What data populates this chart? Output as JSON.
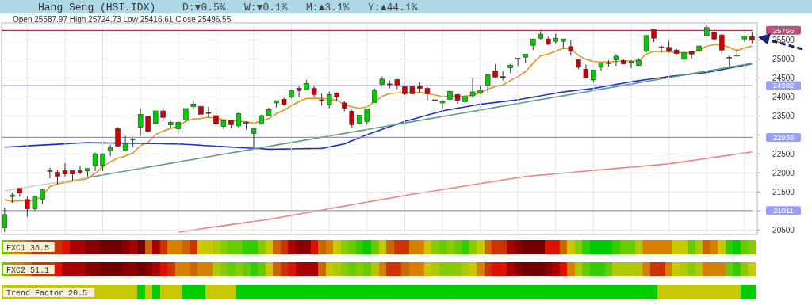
{
  "chart_data": [
    {
      "type": "candlestick",
      "title": "Hang Seng (HSI.IDX)",
      "subtitle": "D:▼0.5%   W:▼0.1%   M:▲3.1%   Y:▲44.1%",
      "annotations": [
        "Open 25587.97 High 25724.73 Low 25416.61 Close 25496.55"
      ],
      "categories": [
        null,
        null,
        null,
        null,
        null,
        null,
        null,
        null,
        null,
        null,
        null,
        null,
        null,
        null,
        null,
        null,
        null,
        null,
        null,
        null,
        null,
        null,
        null,
        null,
        null,
        null,
        null,
        null,
        null,
        null,
        null,
        null,
        null,
        null,
        null,
        null,
        null,
        null,
        null,
        null,
        null,
        null,
        null,
        null,
        null,
        null,
        null,
        null,
        null,
        null,
        null,
        null,
        null,
        null,
        null,
        null,
        null,
        null,
        null,
        null,
        null,
        null,
        null,
        null,
        null,
        null,
        null,
        null,
        null,
        null,
        null,
        null,
        null,
        null,
        null,
        null,
        null,
        null,
        null,
        null,
        null,
        null,
        null,
        null,
        null,
        null,
        null,
        null,
        null,
        null,
        null,
        null,
        null,
        null,
        null,
        null,
        null,
        null,
        null,
        null
      ],
      "ohlc": [
        [
          20556,
          21092,
          20444,
          20904
        ],
        [
          21378,
          21489,
          21210,
          21420
        ],
        [
          21594,
          21594,
          21371,
          21475
        ],
        [
          21301,
          21371,
          20848,
          21057
        ],
        [
          21057,
          21406,
          21009,
          21385
        ],
        [
          21301,
          21587,
          21183,
          21559
        ],
        [
          22050,
          22137,
          21858,
          22060
        ],
        [
          22019,
          22081,
          21705,
          21914
        ],
        [
          22060,
          22255,
          21907,
          21970
        ],
        [
          22060,
          22060,
          21803,
          21970
        ],
        [
          22060,
          22193,
          21963,
          22012
        ],
        [
          22053,
          22116,
          21907,
          22116
        ],
        [
          22193,
          22534,
          22053,
          22506
        ],
        [
          22193,
          22506,
          22053,
          22506
        ],
        [
          22576,
          22743,
          22437,
          22659
        ],
        [
          23168,
          23203,
          22694,
          22708
        ],
        [
          22604,
          22973,
          22576,
          22764
        ],
        [
          22875,
          22924,
          22680,
          22890
        ],
        [
          23203,
          23690,
          22973,
          23544
        ],
        [
          23488,
          23488,
          23077,
          23098
        ],
        [
          23307,
          23634,
          23286,
          23634
        ],
        [
          23634,
          23718,
          23356,
          23461
        ],
        [
          23266,
          23370,
          23182,
          23335
        ],
        [
          23161,
          23370,
          23043,
          23335
        ],
        [
          23405,
          23697,
          23356,
          23697
        ],
        [
          23746,
          23913,
          23690,
          23816
        ],
        [
          23753,
          23774,
          23461,
          23544
        ],
        [
          23590,
          23739,
          23461,
          23579
        ],
        [
          23509,
          23565,
          23217,
          23286
        ],
        [
          23231,
          23377,
          23161,
          23377
        ],
        [
          23391,
          23391,
          23182,
          23272
        ],
        [
          23238,
          23600,
          23182,
          23565
        ],
        [
          23330,
          23356,
          23147,
          23321
        ],
        [
          23043,
          23161,
          22639,
          23161
        ],
        [
          23286,
          23530,
          23272,
          23509
        ],
        [
          23509,
          23718,
          23495,
          23670
        ],
        [
          23844,
          23906,
          23725,
          23906
        ],
        [
          23941,
          23983,
          23774,
          23802
        ],
        [
          23997,
          24192,
          23969,
          24178
        ],
        [
          24227,
          24282,
          23997,
          24171
        ],
        [
          24192,
          24450,
          24192,
          24359
        ],
        [
          24227,
          24296,
          23997,
          24067
        ],
        [
          23927,
          24088,
          23774,
          23920
        ],
        [
          23795,
          24143,
          23704,
          24067
        ],
        [
          24109,
          24122,
          23878,
          23997
        ],
        [
          23844,
          23892,
          23621,
          23704
        ],
        [
          23621,
          23669,
          23182,
          23272
        ],
        [
          23307,
          23523,
          23286,
          23523
        ],
        [
          23356,
          23690,
          23272,
          23690
        ],
        [
          23858,
          24227,
          23858,
          24178
        ],
        [
          24331,
          24540,
          24317,
          24471
        ],
        [
          24345,
          24436,
          24227,
          24340
        ],
        [
          24457,
          24485,
          24206,
          24317
        ],
        [
          24275,
          24275,
          24053,
          24088
        ],
        [
          24275,
          24275,
          24067,
          24088
        ],
        [
          24296,
          24380,
          24122,
          24227
        ],
        [
          24227,
          24262,
          23913,
          24088
        ],
        [
          23927,
          24018,
          23683,
          23920
        ],
        [
          23844,
          23927,
          23704,
          23892
        ],
        [
          23941,
          24171,
          23892,
          24150
        ],
        [
          24067,
          24088,
          23823,
          23913
        ],
        [
          23878,
          24088,
          23823,
          24011
        ],
        [
          24032,
          24499,
          23983,
          24136
        ],
        [
          24109,
          24289,
          24081,
          24192
        ],
        [
          24310,
          24589,
          24122,
          24589
        ],
        [
          24692,
          24868,
          24506,
          24525
        ],
        [
          24540,
          24680,
          24436,
          24506
        ],
        [
          24770,
          24868,
          24624,
          24840
        ],
        [
          25014,
          25020,
          24819,
          25020
        ],
        [
          25049,
          25132,
          24902,
          25132
        ],
        [
          25362,
          25529,
          25237,
          25529
        ],
        [
          25550,
          25738,
          25515,
          25655
        ],
        [
          25529,
          25585,
          25362,
          25390
        ],
        [
          25467,
          25669,
          25411,
          25550
        ],
        [
          25467,
          25529,
          25272,
          25529
        ],
        [
          25327,
          25502,
          25091,
          25202
        ],
        [
          24979,
          24993,
          24735,
          24784
        ],
        [
          24735,
          24854,
          24485,
          24505
        ],
        [
          24450,
          24714,
          24380,
          24714
        ],
        [
          24784,
          24902,
          24693,
          24902
        ],
        [
          24875,
          24972,
          24805,
          24902
        ],
        [
          24979,
          25132,
          24819,
          25077
        ],
        [
          24958,
          24993,
          24854,
          24875
        ],
        [
          24920,
          24972,
          24763,
          24930
        ],
        [
          24833,
          25014,
          24819,
          24972
        ],
        [
          25202,
          25620,
          25181,
          25620
        ],
        [
          25773,
          25773,
          25446,
          25550
        ],
        [
          25320,
          25362,
          25167,
          25300
        ],
        [
          25307,
          25481,
          25167,
          25216
        ],
        [
          25237,
          25272,
          25098,
          25146
        ],
        [
          24993,
          25216,
          24902,
          25167
        ],
        [
          25202,
          25216,
          25014,
          25132
        ],
        [
          25223,
          25362,
          25167,
          25341
        ],
        [
          25620,
          25919,
          25599,
          25829
        ],
        [
          25704,
          25808,
          25502,
          25529
        ],
        [
          25634,
          25655,
          25132,
          25237
        ],
        [
          25040,
          25084,
          24784,
          25045
        ],
        [
          25090,
          25251,
          25063,
          25098
        ],
        [
          25529,
          25606,
          25460,
          25606
        ],
        [
          25587.97,
          25724.73,
          25416.61,
          25496.55
        ]
      ],
      "ylim": [
        20380,
        25950
      ],
      "yticks": [
        20500,
        {
          "value": 21000,
          "label": null
        },
        21500,
        22000,
        22500,
        {
          "value": 23000,
          "label": null
        },
        23500,
        24000,
        24500,
        25000,
        25500
      ],
      "tick_labels": "y",
      "grid": true,
      "ref_lines": [
        {
          "axis": "y",
          "value": 25756,
          "label": "25756",
          "color": "#b03060"
        },
        {
          "axis": "y",
          "value": 24302,
          "label": "24302",
          "color": "#8a90f0"
        },
        {
          "axis": "y",
          "value": 22938,
          "label": "22938",
          "color": "#8a90f0"
        },
        {
          "axis": "y",
          "value": 21011,
          "label": "21011",
          "color": "#8a90f0"
        }
      ]
    },
    {
      "type": "line",
      "categories": [
        null,
        null,
        null,
        null,
        null,
        null,
        null,
        null,
        null,
        null,
        null,
        null,
        null,
        null,
        null,
        null,
        null,
        null,
        null,
        null,
        null,
        null,
        null,
        null,
        null,
        null,
        null,
        null,
        null,
        null,
        null,
        null,
        null,
        null,
        null,
        null,
        null,
        null,
        null,
        null,
        null,
        null,
        null,
        null,
        null,
        null,
        null,
        null,
        null,
        null,
        null,
        null,
        null,
        null,
        null,
        null,
        null,
        null,
        null,
        null,
        null,
        null,
        null,
        null,
        null,
        null,
        null,
        null,
        null,
        null,
        null,
        null,
        null,
        null,
        null,
        null,
        null,
        null,
        null,
        null,
        null,
        null,
        null,
        null,
        null,
        null,
        null,
        null,
        null,
        null,
        null,
        null,
        null,
        null,
        null,
        null,
        null,
        null,
        null,
        null
      ],
      "series": [
        {
          "type": "line",
          "color": "#e8941a",
          "values": [
            21301,
            21252,
            21266,
            21266,
            21280,
            21399,
            21643,
            21713,
            21748,
            21783,
            21817,
            21852,
            21991,
            22165,
            22290,
            22395,
            22443,
            22527,
            22722,
            22806,
            23015,
            23105,
            23175,
            23224,
            23363,
            23419,
            23433,
            23468,
            23440,
            23405,
            23384,
            23363,
            23349,
            23314,
            23363,
            23433,
            23565,
            23649,
            23774,
            23878,
            23962,
            23969,
            23962,
            23948,
            23913,
            23809,
            23739,
            23704,
            23739,
            23878,
            24018,
            24088,
            24109,
            24109,
            24109,
            24122,
            24088,
            24053,
            24011,
            24032,
            24018,
            24018,
            24053,
            24109,
            24206,
            24275,
            24317,
            24436,
            24540,
            24666,
            24889,
            25084,
            25132,
            25202,
            25286,
            25272,
            25098,
            24993,
            24937,
            24923,
            24923,
            24937,
            24944,
            24944,
            24958,
            25132,
            25202,
            25202,
            25188,
            25167,
            25167,
            25167,
            25237,
            25341,
            25376,
            25376,
            25307,
            25223,
            25293,
            25341
          ]
        },
        {
          "type": "line",
          "color": "#1f2fd0",
          "values": [
            22680,
            22691,
            22702,
            22713,
            22724,
            22734,
            22745,
            22756,
            22767,
            22778,
            22788,
            22799,
            22796,
            22793,
            22790,
            22787,
            22784,
            22781,
            22778,
            22776,
            22773,
            22770,
            22767,
            22764,
            22752,
            22741,
            22729,
            22718,
            22706,
            22694,
            22683,
            22671,
            22660,
            22648,
            22637,
            22625,
            22628,
            22631,
            22634,
            22637,
            22640,
            22643,
            22646,
            22685,
            22725,
            22764,
            22845,
            22927,
            23008,
            23078,
            23147,
            23217,
            23286,
            23356,
            23412,
            23468,
            23523,
            23579,
            23635,
            23670,
            23705,
            23739,
            23774,
            23809,
            23833,
            23856,
            23880,
            23903,
            23927,
            23962,
            23997,
            24032,
            24066,
            24101,
            24136,
            24159,
            24182,
            24204,
            24227,
            24262,
            24297,
            24331,
            24366,
            24401,
            24429,
            24457,
            24484,
            24512,
            24540,
            24561,
            24582,
            24603,
            24624,
            24645,
            24683,
            24722,
            24760,
            24798,
            24837,
            24875
          ]
        },
        {
          "type": "line",
          "color": "#c8d4c8",
          "values": [
            21531,
            21563,
            21594,
            21626,
            21657,
            21689,
            21721,
            21752,
            21784,
            21815,
            21847,
            21879,
            null,
            null,
            null,
            null,
            null,
            null,
            null,
            null,
            null,
            null,
            null,
            null,
            null,
            null,
            null,
            null,
            null,
            null,
            null,
            null,
            null,
            null,
            null,
            null,
            null,
            null,
            null,
            null,
            null,
            null,
            null,
            null,
            null,
            null,
            null,
            null,
            null,
            null,
            null,
            null,
            null,
            null,
            null,
            null,
            null,
            null,
            null,
            null,
            null,
            null,
            null,
            null,
            null,
            null,
            null,
            null,
            null,
            null,
            null,
            null,
            null,
            null,
            null,
            null,
            null,
            null,
            null,
            null,
            null,
            null,
            null,
            null,
            null,
            null,
            null,
            null,
            null,
            null,
            null,
            null,
            null,
            null,
            null,
            null,
            null,
            null,
            null,
            null
          ]
        },
        {
          "type": "line",
          "color": "#5a9e80",
          "values": [
            null,
            null,
            null,
            null,
            null,
            null,
            null,
            null,
            null,
            null,
            null,
            21879,
            21913,
            21947,
            21982,
            22016,
            22050,
            22084,
            22118,
            22153,
            22187,
            22221,
            22255,
            22289,
            22324,
            22358,
            22392,
            22426,
            22460,
            22495,
            22529,
            22563,
            22597,
            22631,
            22666,
            22700,
            22734,
            22768,
            22802,
            22837,
            22871,
            22905,
            22939,
            22973,
            23008,
            23042,
            23076,
            23110,
            23144,
            23179,
            23213,
            23247,
            23281,
            23315,
            23350,
            23384,
            23418,
            23452,
            23486,
            23521,
            23555,
            23589,
            23623,
            23657,
            23692,
            23726,
            23760,
            23794,
            23828,
            23863,
            23897,
            23931,
            23965,
            23999,
            24034,
            24068,
            24102,
            24136,
            24170,
            24205,
            24239,
            24273,
            24307,
            24341,
            24376,
            24410,
            24444,
            24478,
            24512,
            24547,
            24581,
            24615,
            24649,
            24683,
            24718,
            24752,
            24786,
            24820,
            24854,
            24889
          ]
        },
        {
          "type": "line",
          "color": "#f08080",
          "values": [
            null,
            null,
            null,
            null,
            null,
            null,
            null,
            null,
            null,
            null,
            null,
            null,
            null,
            null,
            null,
            null,
            null,
            null,
            null,
            null,
            null,
            null,
            null,
            20444,
            20472,
            20500,
            20528,
            20556,
            20584,
            20612,
            20639,
            20667,
            20695,
            20723,
            20751,
            20779,
            20814,
            20849,
            20884,
            20919,
            20953,
            20988,
            21023,
            21058,
            21093,
            21128,
            21162,
            21197,
            21232,
            21267,
            21302,
            21336,
            21371,
            21406,
            21437,
            21469,
            21500,
            21531,
            21563,
            21594,
            21625,
            21657,
            21688,
            21719,
            21750,
            21782,
            21813,
            21844,
            21876,
            21907,
            21925,
            21943,
            21960,
            21978,
            21996,
            22014,
            22032,
            22049,
            22067,
            22084,
            22102,
            22119,
            22137,
            22154,
            22171,
            22189,
            22206,
            22224,
            22241,
            22270,
            22298,
            22327,
            22355,
            22384,
            22412,
            22441,
            22469,
            22498,
            22526,
            22555
          ]
        }
      ],
      "ylim": [
        20380,
        25950
      ],
      "tick_labels": false,
      "marker": "none",
      "line_style": "solid"
    },
    {
      "type": "other",
      "title": "FXC1 36.5",
      "colors": [
        "#66cc00",
        "#d88000",
        "#d88000",
        "#cc6600",
        "#cc3300",
        "#cc3300",
        "#cc3300",
        "#cc3300",
        "#dd1100",
        "#aa0000",
        "#aa0000",
        "#8a0000",
        "#8a0000",
        "#700000",
        "#700000",
        "#700000",
        "#8a0000",
        "#aa0000",
        "#700000",
        "#cc6600",
        "#aa0000",
        "#cc3300",
        "#d88000",
        "#d88000",
        "#cc6600",
        "#cc3300",
        "#c8c800",
        "#c8c800",
        "#b0c800",
        "#88cc00",
        "#66cc00",
        "#66cc00",
        "#33cc00",
        "#33cc00",
        "#88cc00",
        "#c8c800",
        "#cc6600",
        "#cc3300",
        "#aa0000",
        "#8a0000",
        "#8a0000",
        "#dd1100",
        "#cc6600",
        "#d88000",
        "#c8c800",
        "#88cc00",
        "#66cc00",
        "#33cc00",
        "#00cc00",
        "#66cc00",
        "#c8c800",
        "#cc6600",
        "#cc3300",
        "#cc3300",
        "#d88000",
        "#d88000",
        "#c8c800",
        "#88cc00",
        "#66cc00",
        "#88cc00",
        "#66cc00",
        "#33cc00",
        "#88cc00",
        "#c8c800",
        "#cc6600",
        "#cc3300",
        "#cc3300",
        "#aa0000",
        "#8a0000",
        "#700000",
        "#700000",
        "#700000",
        "#dd1100",
        "#dd1100",
        "#cc6600",
        "#c8c800",
        "#88cc00",
        "#33cc00",
        "#00cc00",
        "#00cc00",
        "#00cc00",
        "#33cc00",
        "#66cc00",
        "#66cc00",
        "#b0c800",
        "#d88000",
        "#d88000",
        "#d88000",
        "#d88000",
        "#c8c800",
        "#c8c800",
        "#66cc00",
        "#b0c800",
        "#cc6600",
        "#d88000",
        "#c8c800",
        "#33cc00",
        "#00cc00",
        "#66cc00",
        "#88cc00"
      ]
    },
    {
      "type": "other",
      "title": "FXC2 51.1",
      "colors": [
        "#66cc00",
        "#d88000",
        "#d88000",
        "#cc6600",
        "#cc3300",
        "#cc3300",
        "#cc3300",
        "#dd1100",
        "#aa0000",
        "#aa0000",
        "#aa0000",
        "#8a0000",
        "#8a0000",
        "#700000",
        "#700000",
        "#700000",
        "#8a0000",
        "#8a0000",
        "#700000",
        "#8a0000",
        "#aa0000",
        "#dd1100",
        "#cc3300",
        "#d88000",
        "#d88000",
        "#cc6600",
        "#d88000",
        "#d88000",
        "#b0c800",
        "#88cc00",
        "#66cc00",
        "#88cc00",
        "#66cc00",
        "#33cc00",
        "#66cc00",
        "#c8c800",
        "#cc6600",
        "#cc3300",
        "#dd1100",
        "#aa0000",
        "#aa0000",
        "#aa0000",
        "#cc6600",
        "#c8c800",
        "#b0c800",
        "#88cc00",
        "#66cc00",
        "#88cc00",
        "#66cc00",
        "#b0c800",
        "#d88000",
        "#cc3300",
        "#cc3300",
        "#cc6600",
        "#d88000",
        "#d88000",
        "#c8c800",
        "#b0c800",
        "#88cc00",
        "#88cc00",
        "#88cc00",
        "#b0c800",
        "#c8c800",
        "#d88000",
        "#cc3300",
        "#dd1100",
        "#dd1100",
        "#aa0000",
        "#8a0000",
        "#700000",
        "#700000",
        "#700000",
        "#8a0000",
        "#aa0000",
        "#dd1100",
        "#d88000",
        "#b0c800",
        "#66cc00",
        "#33cc00",
        "#33cc00",
        "#66cc00",
        "#b0c800",
        "#b0c800",
        "#b0c800",
        "#b0c800",
        "#d88000",
        "#cc3300",
        "#cc3300",
        "#d88000",
        "#c8c800",
        "#b0c800",
        "#88cc00",
        "#b0c800",
        "#d88000",
        "#d88000",
        "#d88000",
        "#66cc00",
        "#33cc00",
        "#88cc00",
        "#c8c800"
      ]
    },
    {
      "type": "other",
      "title": "Trend Factor 20.5",
      "colors": [
        "#c8c800",
        "#c8c800",
        "#c8c800",
        "#c8c800",
        "#c8c800",
        "#c8c800",
        "#c8c800",
        "#c8c800",
        "#c8c800",
        "#c8c800",
        "#c8c800",
        "#c8c800",
        "#c8c800",
        "#c8c800",
        "#c8c800",
        "#c8c800",
        "#c8c800",
        "#c8c800",
        "#00cc00",
        "#c8c800",
        "#00cc00",
        "#c8c800",
        "#c8c800",
        "#c8c800",
        "#00cc00",
        "#00cc00",
        "#00cc00",
        "#c8c800",
        "#c8c800",
        "#c8c800",
        "#c8c800",
        "#00cc00",
        "#00cc00",
        "#00cc00",
        "#00cc00",
        "#00cc00",
        "#00cc00",
        "#00cc00",
        "#00cc00",
        "#00cc00",
        "#00cc00",
        "#00cc00",
        "#00cc00",
        "#00cc00",
        "#00cc00",
        "#00cc00",
        "#00cc00",
        "#00cc00",
        "#00cc00",
        "#00cc00",
        "#00cc00",
        "#00cc00",
        "#00cc00",
        "#00cc00",
        "#00cc00",
        "#00cc00",
        "#00cc00",
        "#00cc00",
        "#00cc00",
        "#00cc00",
        "#00cc00",
        "#00cc00",
        "#00cc00",
        "#00cc00",
        "#00cc00",
        "#00cc00",
        "#00cc00",
        "#00cc00",
        "#00cc00",
        "#00cc00",
        "#00cc00",
        "#00cc00",
        "#00cc00",
        "#00cc00",
        "#00cc00",
        "#00cc00",
        "#00cc00",
        "#00cc00",
        "#00cc00",
        "#00cc00",
        "#00cc00",
        "#00cc00",
        "#00cc00",
        "#00cc00",
        "#00cc00",
        "#00cc00",
        "#00cc00",
        "#c8c800",
        "#c8c800",
        "#c8c800",
        "#c8c800",
        "#c8c800",
        "#c8c800",
        "#c8c800",
        "#c8c800",
        "#c8c800",
        "#c8c800",
        "#c8c800",
        "#00cc00",
        "#00cc00"
      ]
    }
  ]
}
